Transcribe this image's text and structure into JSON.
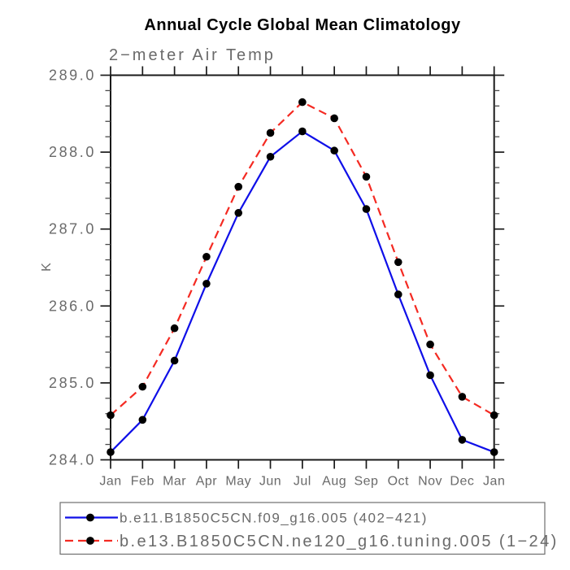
{
  "chart_data": {
    "type": "line",
    "title": "Annual Cycle Global Mean Climatology",
    "subtitle": "2−meter Air Temp",
    "ylabel": "K",
    "categories": [
      "Jan",
      "Feb",
      "Mar",
      "Apr",
      "May",
      "Jun",
      "Jul",
      "Aug",
      "Sep",
      "Oct",
      "Nov",
      "Dec",
      "Jan"
    ],
    "ylim": [
      284.0,
      289.0
    ],
    "ytick_step": 1.0,
    "yminor_step": 0.2,
    "ytick_labels": [
      "284.0",
      "285.0",
      "286.0",
      "287.0",
      "288.0",
      "289.0"
    ],
    "grid": false,
    "legend_position": "bottom",
    "frame": "box-with-outward-ticks",
    "colors": {
      "axis": "#1a1a1a",
      "label_gray": "#6a6a6a",
      "series_blue": "#0f0fe8",
      "series_red": "#f42a22",
      "marker_black": "#000000"
    },
    "series": [
      {
        "name": "b.e11.B1850C5CN.f09_g16.005 (402−421)",
        "color": "#0f0fe8",
        "style": "solid",
        "marker": "filled-circle",
        "marker_color": "#000000",
        "values": [
          284.1,
          284.52,
          285.29,
          286.29,
          287.21,
          287.94,
          288.27,
          288.02,
          287.26,
          286.15,
          285.1,
          284.26,
          284.1
        ]
      },
      {
        "name": "b.e13.B1850C5CN.ne120_g16.tuning.005 (1−24)",
        "color": "#f42a22",
        "style": "dashed",
        "marker": "filled-circle",
        "marker_color": "#000000",
        "values": [
          284.58,
          284.95,
          285.71,
          286.64,
          287.55,
          288.25,
          288.65,
          288.44,
          287.68,
          286.57,
          285.5,
          284.82,
          284.58
        ]
      }
    ]
  }
}
